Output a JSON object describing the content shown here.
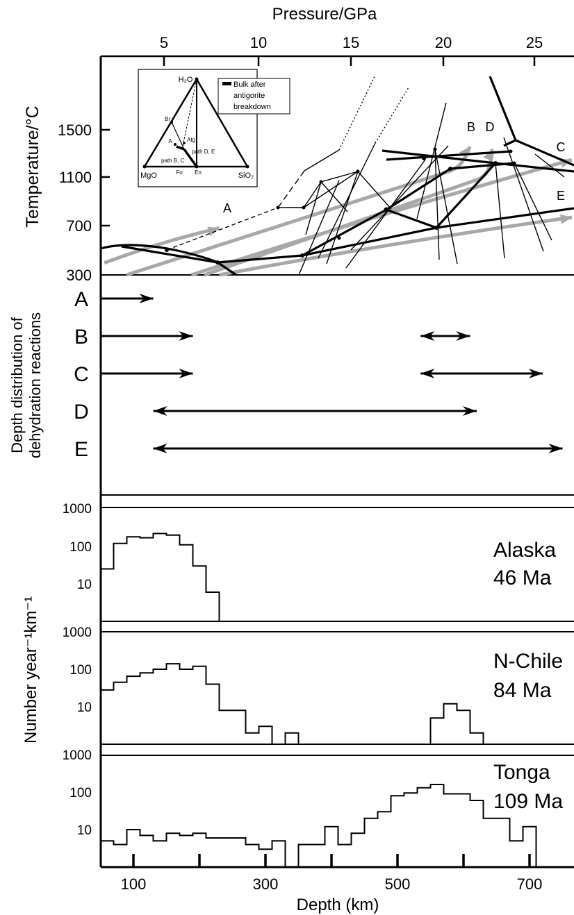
{
  "axes": {
    "top_xlabel": "Pressure/GPa",
    "top_ticks": [
      "5",
      "10",
      "15",
      "20",
      "25"
    ],
    "temp_ylabel": "Temperature/°C",
    "temp_ticks": [
      "1500",
      "1100",
      "700",
      "300"
    ],
    "dehydration_ylabel_line1": "Depth distribution of",
    "dehydration_ylabel_line2": "dehydration reactions",
    "count_ylabel": "Number year⁻¹km⁻¹",
    "log_ticks": [
      "1000",
      "100",
      "10"
    ],
    "depth_ticks": [
      "100",
      "300",
      "500",
      "700"
    ],
    "xlabel": "Depth (km)"
  },
  "inset": {
    "top_label": "H₂O",
    "left_label": "MgO",
    "right_label": "SiO₂",
    "fo_label": "Fo",
    "en_label": "En",
    "br_label": "Br",
    "a_label": "A",
    "atg_label": "Atg",
    "pathde_label": "path D, E",
    "pathbc_label": "path B, C",
    "legend_line1": "Bulk after",
    "legend_line2": "antigorite",
    "legend_line3": "breakdown"
  },
  "path_labels": [
    "A",
    "B",
    "D",
    "C",
    "E"
  ],
  "chart_data": [
    {
      "type": "line",
      "panel": "temperature-pressure",
      "xlabel": "Pressure/GPa",
      "ylabel": "Temperature/°C",
      "xlim": [
        1.8,
        27.0
      ],
      "ylim": [
        300,
        1900
      ],
      "series": [
        {
          "name": "A",
          "x": [
            1.8,
            8.0
          ],
          "y": [
            400,
            690
          ]
        },
        {
          "name": "B",
          "x": [
            3.0,
            20.5,
            21.5
          ],
          "y": [
            300,
            1170,
            1370
          ]
        },
        {
          "name": "C",
          "x": [
            6.5,
            27.0
          ],
          "y": [
            300,
            1260
          ]
        },
        {
          "name": "D",
          "x": [
            7.2,
            22.0,
            22.7
          ],
          "y": [
            300,
            1100,
            1350
          ]
        },
        {
          "name": "E",
          "x": [
            8.0,
            27.0
          ],
          "y": [
            300,
            780
          ]
        }
      ]
    },
    {
      "type": "bar",
      "panel": "depth-distribution-of-dehydration-reactions",
      "xlabel": "Depth (km)",
      "categories": [
        "A",
        "B",
        "C",
        "D",
        "E"
      ],
      "ranges_km": {
        "A": [
          [
            50,
            130
          ]
        ],
        "B": [
          [
            50,
            190
          ],
          [
            535,
            610
          ]
        ],
        "C": [
          [
            50,
            190
          ],
          [
            535,
            720
          ]
        ],
        "D": [
          [
            130,
            620
          ]
        ],
        "E": [
          [
            130,
            750
          ]
        ]
      }
    },
    {
      "type": "bar",
      "panel": "histogram",
      "title": "Alaska",
      "subtitle": "46 Ma",
      "xlabel": "Depth (km)",
      "ylabel": "Number year⁻¹km⁻¹",
      "yscale": "log",
      "ylim": [
        1,
        1000
      ],
      "bin_width_km": 20,
      "x_start": [
        50,
        70,
        90,
        110,
        130,
        150,
        170,
        190,
        210
      ],
      "values": [
        25,
        120,
        180,
        170,
        220,
        200,
        110,
        30,
        6
      ]
    },
    {
      "type": "bar",
      "panel": "histogram",
      "title": "N-Chile",
      "subtitle": "84 Ma",
      "xlabel": "Depth (km)",
      "ylabel": "Number year⁻¹km⁻¹",
      "yscale": "log",
      "ylim": [
        1,
        1000
      ],
      "bin_width_km": 20,
      "x_start": [
        50,
        70,
        90,
        110,
        130,
        150,
        170,
        190,
        210,
        230,
        250,
        270,
        290,
        310,
        330,
        550,
        570,
        590,
        610
      ],
      "values": [
        28,
        45,
        65,
        80,
        100,
        140,
        100,
        120,
        40,
        8,
        8,
        2,
        3,
        1,
        2,
        5,
        12,
        8,
        2
      ]
    },
    {
      "type": "bar",
      "panel": "histogram",
      "title": "Tonga",
      "subtitle": "109 Ma",
      "xlabel": "Depth (km)",
      "ylabel": "Number year⁻¹km⁻¹",
      "yscale": "log",
      "ylim": [
        1,
        1000
      ],
      "bin_width_km": 20,
      "x_start": [
        50,
        70,
        90,
        110,
        130,
        150,
        170,
        190,
        210,
        230,
        250,
        270,
        290,
        310,
        330,
        350,
        370,
        390,
        410,
        430,
        450,
        470,
        490,
        510,
        530,
        550,
        570,
        590,
        610,
        630,
        650,
        670,
        690
      ],
      "values": [
        5,
        4,
        10,
        7,
        5,
        8,
        7,
        8,
        6,
        6,
        6,
        4,
        3,
        5,
        1,
        4,
        4,
        12,
        4,
        8,
        20,
        30,
        80,
        95,
        130,
        160,
        90,
        90,
        60,
        20,
        20,
        5,
        12
      ]
    }
  ]
}
